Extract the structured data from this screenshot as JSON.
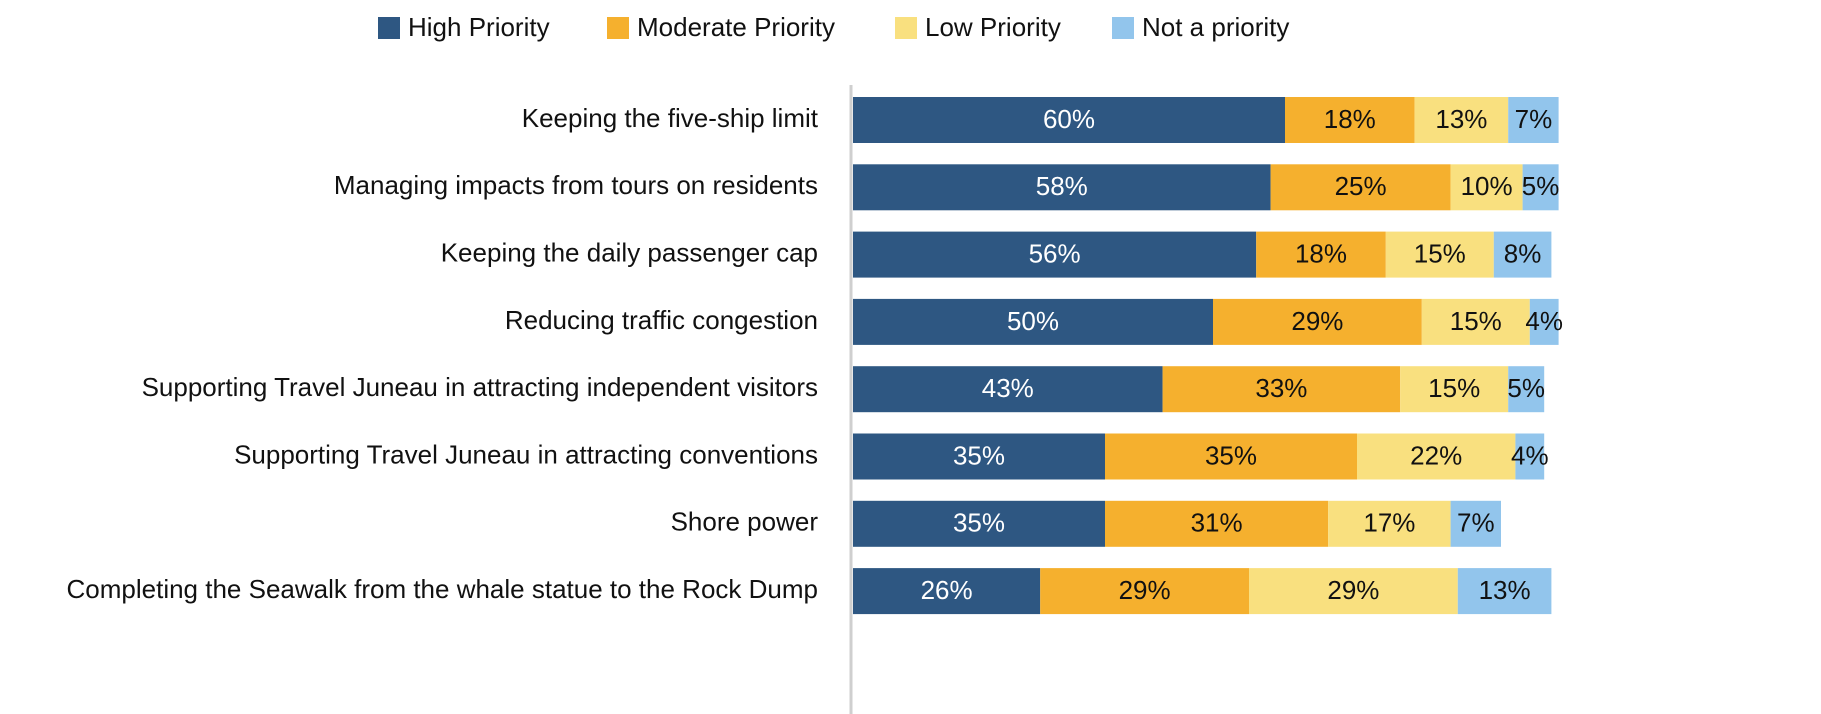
{
  "chart_data": {
    "type": "stacked-bar-horizontal",
    "categories": [
      "Keeping the five-ship limit",
      "Managing impacts from tours on residents",
      "Keeping the daily passenger cap",
      "Reducing traffic congestion",
      "Supporting Travel Juneau in attracting independent visitors",
      "Supporting Travel Juneau in attracting conventions",
      "Shore power",
      "Completing the Seawalk from the whale statue to the Rock Dump"
    ],
    "series": [
      {
        "name": "High Priority",
        "color": "#2e5782",
        "values": [
          60,
          58,
          56,
          50,
          43,
          35,
          35,
          26
        ],
        "value_labels": [
          "60%",
          "58%",
          "56%",
          "50%",
          "43%",
          "35%",
          "35%",
          "26%"
        ]
      },
      {
        "name": "Moderate Priority",
        "color": "#f5b02e",
        "values": [
          18,
          25,
          18,
          29,
          33,
          35,
          31,
          29
        ],
        "value_labels": [
          "18%",
          "25%",
          "18%",
          "29%",
          "33%",
          "35%",
          "31%",
          "29%"
        ]
      },
      {
        "name": "Low Priority",
        "color": "#f9e07f",
        "values": [
          13,
          10,
          15,
          15,
          15,
          22,
          17,
          29
        ],
        "value_labels": [
          "13%",
          "10%",
          "15%",
          "15%",
          "15%",
          "22%",
          "17%",
          "29%"
        ]
      },
      {
        "name": "Not a priority",
        "color": "#92c5ec",
        "values": [
          7,
          5,
          8,
          4,
          5,
          4,
          7,
          13
        ],
        "value_labels": [
          "7%",
          "5%",
          "8%",
          "4%",
          "5%",
          "4%",
          "7%",
          "13%"
        ]
      }
    ],
    "xlim": [
      0,
      100
    ],
    "legend": "top"
  }
}
